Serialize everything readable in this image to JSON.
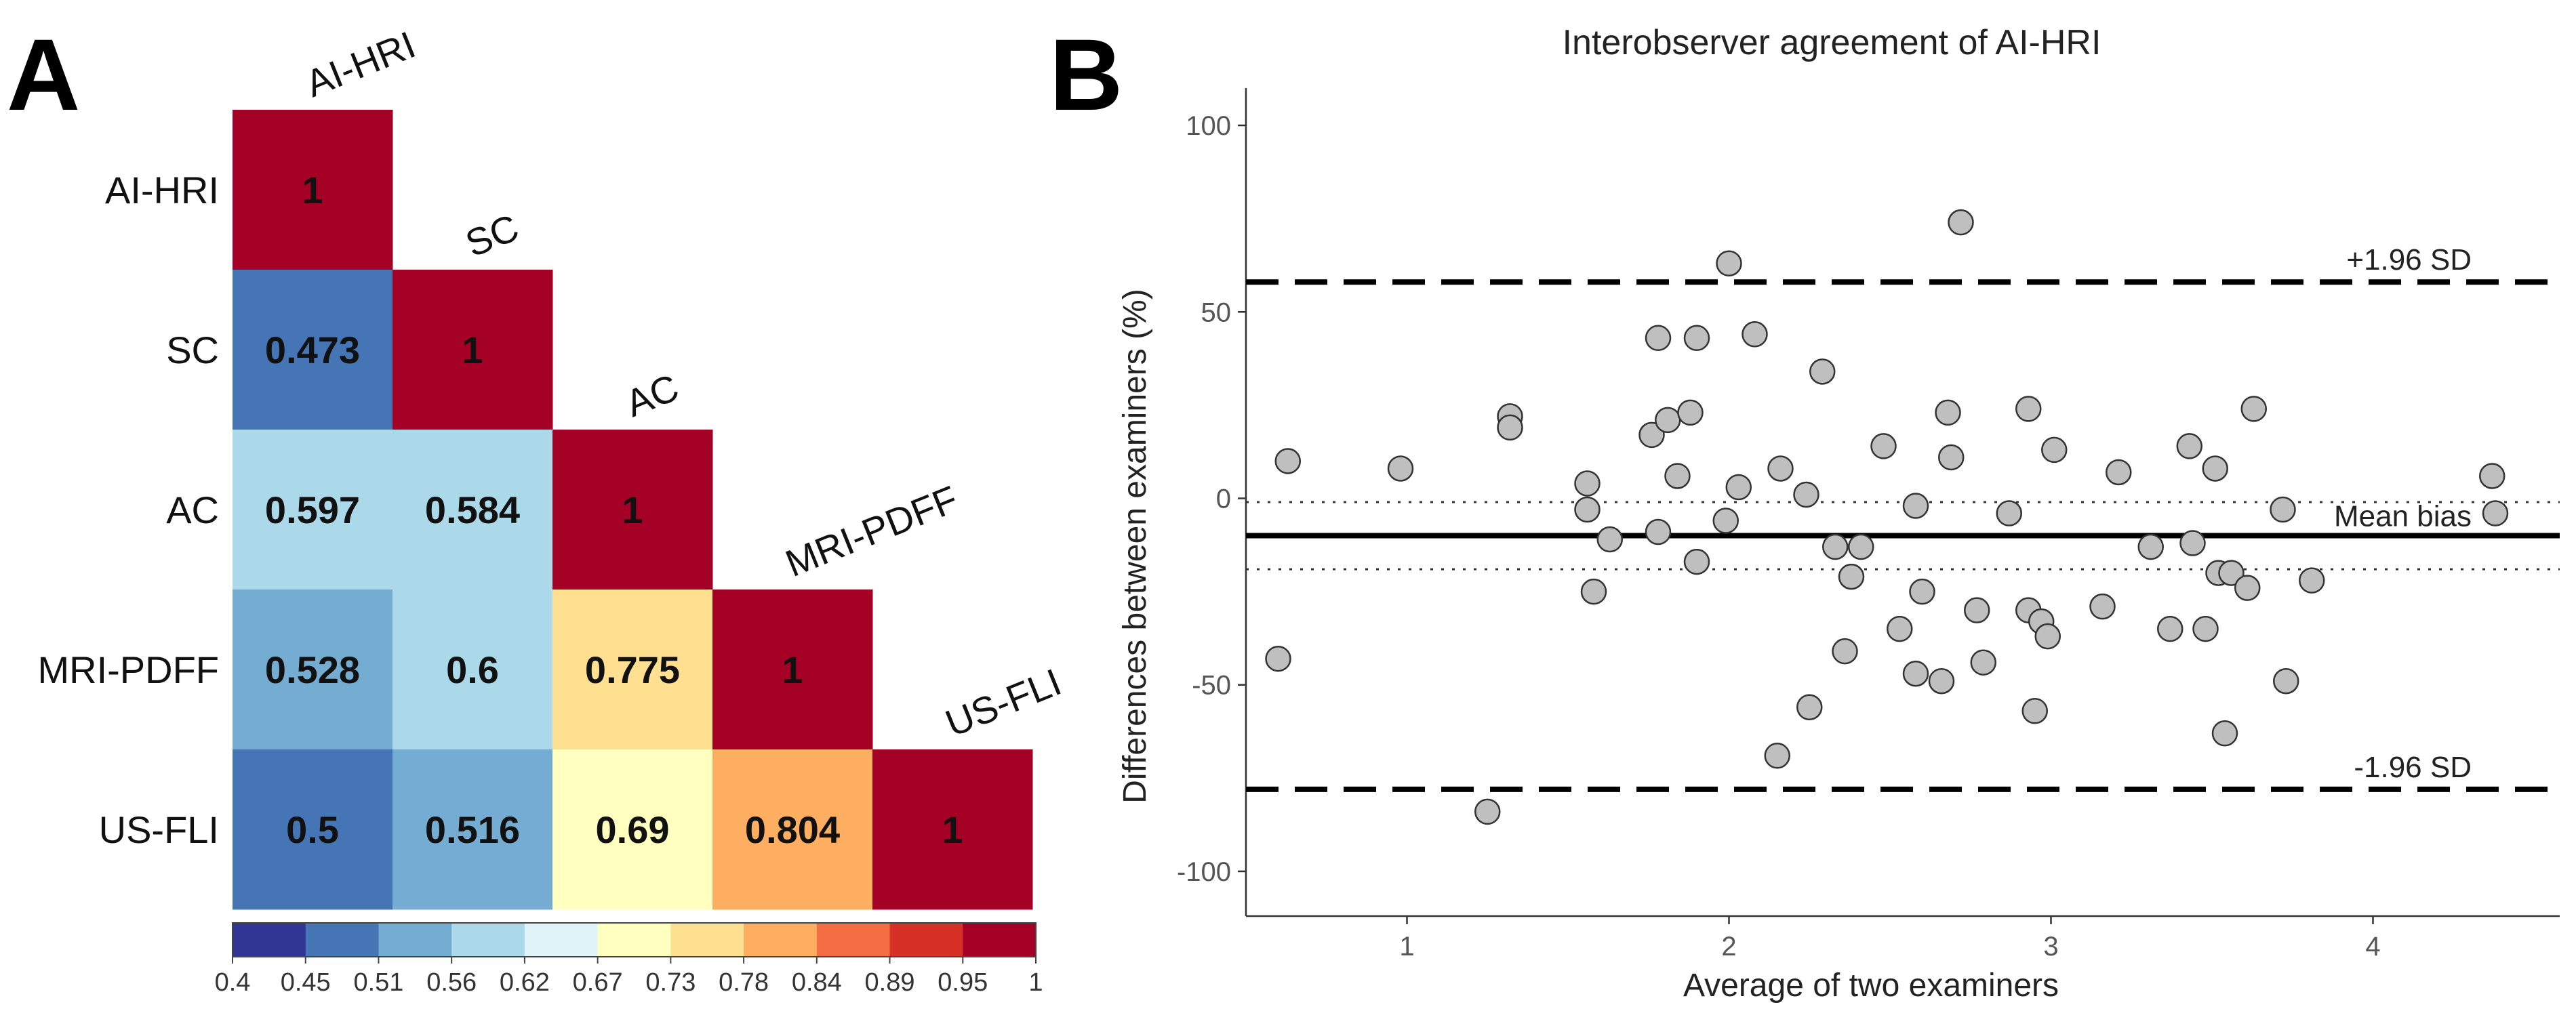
{
  "chart_data": [
    {
      "type": "heatmap",
      "panel_label": "A",
      "variables": [
        "AI-HRI",
        "SC",
        "AC",
        "MRI-PDFF",
        "US-FLI"
      ],
      "matrix": [
        [
          1,
          null,
          null,
          null,
          null
        ],
        [
          0.473,
          1,
          null,
          null,
          null
        ],
        [
          0.597,
          0.584,
          1,
          null,
          null
        ],
        [
          0.528,
          0.6,
          0.775,
          1,
          null
        ],
        [
          0.5,
          0.516,
          0.69,
          0.804,
          1
        ]
      ],
      "value_labels": [
        [
          "1",
          "",
          "",
          "",
          ""
        ],
        [
          "0.473",
          "1",
          "",
          "",
          ""
        ],
        [
          "0.597",
          "0.584",
          "1",
          "",
          ""
        ],
        [
          "0.528",
          "0.6",
          "0.775",
          "1",
          ""
        ],
        [
          "0.5",
          "0.516",
          "0.69",
          "0.804",
          "1"
        ]
      ],
      "color_scale": {
        "ticks": [
          "0.4",
          "0.45",
          "0.51",
          "0.56",
          "0.62",
          "0.67",
          "0.73",
          "0.78",
          "0.84",
          "0.89",
          "0.95",
          "1"
        ],
        "colors": [
          "#313695",
          "#4575b4",
          "#74add1",
          "#abd9e9",
          "#e0f3f8",
          "#ffffbf",
          "#fee090",
          "#fdae61",
          "#f46d43",
          "#d73027",
          "#a50026"
        ],
        "range": [
          0.4,
          1
        ]
      }
    },
    {
      "type": "scatter",
      "panel_label": "B",
      "title": "Interobserver agreement of AI-HRI",
      "xlabel": "Average of two examiners",
      "ylabel": "Differences between examiners (%)",
      "xlim": [
        0.5,
        4.58
      ],
      "ylim": [
        -112,
        110
      ],
      "x_ticks": [
        1,
        2,
        3,
        4
      ],
      "y_ticks": [
        -100,
        -50,
        0,
        50,
        100
      ],
      "mean_bias": -10,
      "mean_bias_ci": [
        -1,
        -19
      ],
      "upper_loa": 58,
      "lower_loa": -78,
      "labels": {
        "upper": "+1.96 SD",
        "lower": "-1.96 SD",
        "mean": "Mean bias"
      },
      "points": [
        [
          0.6,
          -43
        ],
        [
          0.63,
          10
        ],
        [
          0.98,
          8
        ],
        [
          1.25,
          -84
        ],
        [
          1.32,
          22
        ],
        [
          1.32,
          19
        ],
        [
          1.56,
          4
        ],
        [
          1.56,
          -3
        ],
        [
          1.58,
          -25
        ],
        [
          1.63,
          -11
        ],
        [
          1.76,
          17
        ],
        [
          1.78,
          -9
        ],
        [
          1.78,
          43
        ],
        [
          1.81,
          21
        ],
        [
          1.84,
          6
        ],
        [
          1.88,
          23
        ],
        [
          1.9,
          43
        ],
        [
          1.9,
          -17
        ],
        [
          1.99,
          -6
        ],
        [
          2.0,
          63
        ],
        [
          2.03,
          3
        ],
        [
          2.08,
          44
        ],
        [
          2.15,
          -69
        ],
        [
          2.16,
          8
        ],
        [
          2.24,
          1
        ],
        [
          2.25,
          -56
        ],
        [
          2.29,
          34
        ],
        [
          2.33,
          -13
        ],
        [
          2.36,
          -41
        ],
        [
          2.38,
          -21
        ],
        [
          2.41,
          -13
        ],
        [
          2.48,
          14
        ],
        [
          2.53,
          -35
        ],
        [
          2.58,
          -2
        ],
        [
          2.58,
          -47
        ],
        [
          2.6,
          -25
        ],
        [
          2.66,
          -49
        ],
        [
          2.68,
          23
        ],
        [
          2.69,
          11
        ],
        [
          2.72,
          74
        ],
        [
          2.77,
          -30
        ],
        [
          2.79,
          -44
        ],
        [
          2.87,
          -4
        ],
        [
          2.93,
          24
        ],
        [
          2.93,
          -30
        ],
        [
          2.95,
          -57
        ],
        [
          2.97,
          -33
        ],
        [
          2.99,
          -37
        ],
        [
          3.01,
          13
        ],
        [
          3.16,
          -29
        ],
        [
          3.21,
          7
        ],
        [
          3.31,
          -13
        ],
        [
          3.37,
          -35
        ],
        [
          3.43,
          14
        ],
        [
          3.44,
          -12
        ],
        [
          3.48,
          -35
        ],
        [
          3.51,
          8
        ],
        [
          3.52,
          -20
        ],
        [
          3.54,
          -63
        ],
        [
          3.56,
          -20
        ],
        [
          3.61,
          -24
        ],
        [
          3.63,
          24
        ],
        [
          3.72,
          -3
        ],
        [
          3.73,
          -49
        ],
        [
          3.81,
          -22
        ],
        [
          4.37,
          6
        ],
        [
          4.38,
          -4
        ]
      ]
    }
  ]
}
